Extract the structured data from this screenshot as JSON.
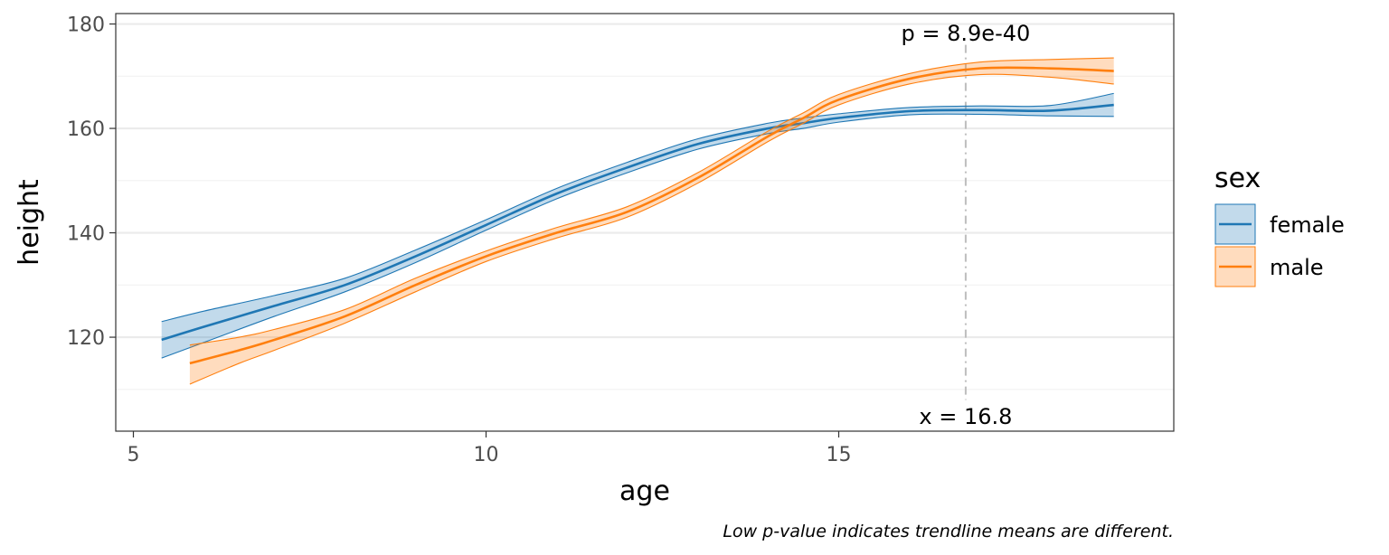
{
  "chart_data": {
    "type": "line",
    "xlabel": "age",
    "ylabel": "height",
    "xlim": [
      4.75,
      19.75
    ],
    "ylim": [
      102,
      182
    ],
    "x_ticks": [
      5,
      10,
      15
    ],
    "y_ticks": [
      120,
      140,
      160,
      180
    ],
    "x_tick_labels": [
      "5",
      "10",
      "15"
    ],
    "y_tick_labels": [
      "120",
      "140",
      "160",
      "180"
    ],
    "grid": true,
    "legend": {
      "title": "sex",
      "position": "right"
    },
    "annotations": {
      "p_value": "p = 8.9e-40",
      "vline_label": "x = 16.8",
      "vline_x": 16.8
    },
    "caption": "Low p-value indicates trendline means are different.",
    "series": [
      {
        "name": "female",
        "color": "#1f77b4",
        "x": [
          5.4,
          6.0,
          7.0,
          8.0,
          9.0,
          10.0,
          11.0,
          12.0,
          13.0,
          14.0,
          14.5,
          15.0,
          16.0,
          17.0,
          18.0,
          18.9
        ],
        "y": [
          119.5,
          122.0,
          126.0,
          130.0,
          135.5,
          141.5,
          147.5,
          152.5,
          157.0,
          160.0,
          161.0,
          162.0,
          163.3,
          163.5,
          163.4,
          164.5
        ],
        "lower": [
          116.0,
          119.0,
          124.0,
          128.7,
          134.3,
          140.5,
          146.5,
          151.5,
          156.0,
          159.0,
          160.0,
          161.2,
          162.6,
          162.7,
          162.4,
          162.3
        ],
        "upper": [
          123.0,
          125.0,
          128.0,
          131.3,
          136.7,
          142.5,
          148.5,
          153.5,
          158.0,
          161.0,
          162.0,
          162.8,
          164.0,
          164.3,
          164.4,
          166.7
        ]
      },
      {
        "name": "male",
        "color": "#ff7f0e",
        "x": [
          5.8,
          6.5,
          7.0,
          8.0,
          9.0,
          10.0,
          11.0,
          12.0,
          13.0,
          14.0,
          14.5,
          15.0,
          16.0,
          17.0,
          18.0,
          18.9
        ],
        "y": [
          115.0,
          117.5,
          119.5,
          124.0,
          130.0,
          135.5,
          140.0,
          144.0,
          150.5,
          158.5,
          162.0,
          165.5,
          169.5,
          171.5,
          171.5,
          171.0
        ],
        "lower": [
          111.0,
          115.0,
          117.5,
          122.7,
          128.7,
          134.5,
          139.0,
          143.0,
          149.5,
          157.5,
          161.0,
          164.5,
          168.5,
          170.3,
          169.8,
          168.5
        ],
        "upper": [
          118.5,
          120.0,
          121.5,
          125.3,
          131.3,
          136.5,
          141.0,
          145.0,
          151.5,
          159.5,
          163.0,
          166.5,
          170.5,
          172.7,
          173.2,
          173.5
        ]
      }
    ]
  }
}
